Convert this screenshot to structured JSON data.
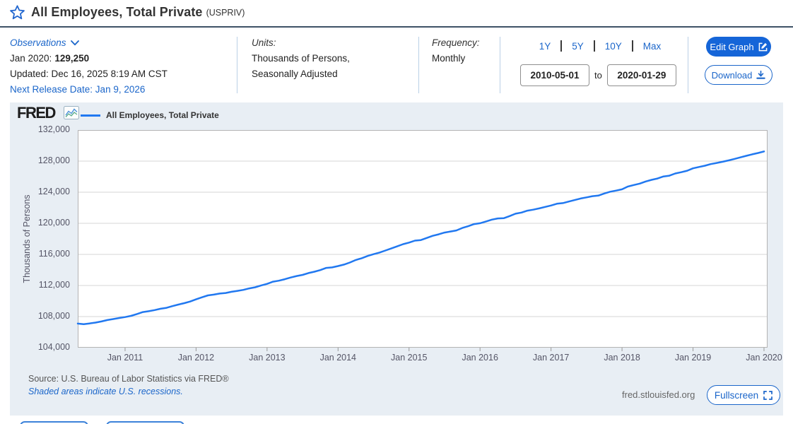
{
  "header": {
    "title": "All Employees, Total Private",
    "series_id": "(USPRIV)"
  },
  "observations": {
    "label": "Observations",
    "latest_label": "Jan 2020:",
    "latest_value": "129,250",
    "updated": "Updated: Dec 16, 2025 8:19 AM CST",
    "next_release": "Next Release Date: Jan 9, 2026"
  },
  "units": {
    "label": "Units:",
    "value_line1": "Thousands of Persons,",
    "value_line2": "Seasonally Adjusted"
  },
  "frequency": {
    "label": "Frequency:",
    "value": "Monthly"
  },
  "date_range": {
    "presets": [
      "1Y",
      "5Y",
      "10Y",
      "Max"
    ],
    "start": "2010-05-01",
    "separator": "to",
    "end": "2020-01-29"
  },
  "actions": {
    "edit_graph": "Edit Graph",
    "download": "Download",
    "fullscreen": "Fullscreen"
  },
  "branding": {
    "logo": "FRED",
    "site": "fred.stlouisfed.org"
  },
  "footnotes": {
    "source": "Source: U.S. Bureau of Labor Statistics via FRED®",
    "recessions": "Shaded areas indicate U.S. recessions."
  },
  "icons": {
    "star": "star-outline",
    "chevron": "chevron-down",
    "edit": "pencil-square",
    "download": "download-arrow",
    "fullscreen": "expand-corners",
    "logo_graph": "line-chart"
  },
  "colors": {
    "accent_blue": "#1b66ca",
    "button_blue": "#1565d8",
    "line_blue": "#2178f0",
    "panel_bg": "#e8eef4",
    "rule_navy": "#3e5266"
  },
  "chart_data": {
    "type": "line",
    "title": "All Employees, Total Private",
    "legend": [
      "All Employees, Total Private"
    ],
    "legend_position": "top-left",
    "xlabel": "",
    "ylabel": "Thousands of Persons",
    "grid": "horizontal",
    "ylim": [
      104000,
      132000
    ],
    "xlim": [
      2010.3333,
      2020.05
    ],
    "line_color": "#2178f0",
    "yticks": [
      {
        "v": 104000,
        "label": "104,000"
      },
      {
        "v": 108000,
        "label": "108,000"
      },
      {
        "v": 112000,
        "label": "112,000"
      },
      {
        "v": 116000,
        "label": "116,000"
      },
      {
        "v": 120000,
        "label": "120,000"
      },
      {
        "v": 124000,
        "label": "124,000"
      },
      {
        "v": 128000,
        "label": "128,000"
      },
      {
        "v": 132000,
        "label": "132,000"
      }
    ],
    "xticks": [
      {
        "x": 2011,
        "label": "Jan 2011"
      },
      {
        "x": 2012,
        "label": "Jan 2012"
      },
      {
        "x": 2013,
        "label": "Jan 2013"
      },
      {
        "x": 2014,
        "label": "Jan 2014"
      },
      {
        "x": 2015,
        "label": "Jan 2015"
      },
      {
        "x": 2016,
        "label": "Jan 2016"
      },
      {
        "x": 2017,
        "label": "Jan 2017"
      },
      {
        "x": 2018,
        "label": "Jan 2018"
      },
      {
        "x": 2019,
        "label": "Jan 2019"
      },
      {
        "x": 2020,
        "label": "Jan 2020"
      }
    ],
    "series": [
      {
        "name": "All Employees, Total Private",
        "points": [
          [
            "2010-05",
            107100
          ],
          [
            "2010-06",
            107030
          ],
          [
            "2010-07",
            107120
          ],
          [
            "2010-08",
            107230
          ],
          [
            "2010-09",
            107370
          ],
          [
            "2010-10",
            107550
          ],
          [
            "2010-11",
            107680
          ],
          [
            "2010-12",
            107820
          ],
          [
            "2011-01",
            107940
          ],
          [
            "2011-02",
            108090
          ],
          [
            "2011-03",
            108330
          ],
          [
            "2011-04",
            108580
          ],
          [
            "2011-05",
            108690
          ],
          [
            "2011-06",
            108840
          ],
          [
            "2011-07",
            109010
          ],
          [
            "2011-08",
            109130
          ],
          [
            "2011-09",
            109350
          ],
          [
            "2011-10",
            109550
          ],
          [
            "2011-11",
            109730
          ],
          [
            "2011-12",
            109940
          ],
          [
            "2012-01",
            110220
          ],
          [
            "2012-02",
            110480
          ],
          [
            "2012-03",
            110730
          ],
          [
            "2012-04",
            110830
          ],
          [
            "2012-05",
            110960
          ],
          [
            "2012-06",
            111040
          ],
          [
            "2012-07",
            111190
          ],
          [
            "2012-08",
            111310
          ],
          [
            "2012-09",
            111440
          ],
          [
            "2012-10",
            111630
          ],
          [
            "2012-11",
            111770
          ],
          [
            "2012-12",
            112010
          ],
          [
            "2013-01",
            112210
          ],
          [
            "2013-02",
            112490
          ],
          [
            "2013-03",
            112620
          ],
          [
            "2013-04",
            112810
          ],
          [
            "2013-05",
            113030
          ],
          [
            "2013-06",
            113220
          ],
          [
            "2013-07",
            113360
          ],
          [
            "2013-08",
            113600
          ],
          [
            "2013-09",
            113770
          ],
          [
            "2013-10",
            113980
          ],
          [
            "2013-11",
            114260
          ],
          [
            "2013-12",
            114330
          ],
          [
            "2014-01",
            114500
          ],
          [
            "2014-02",
            114690
          ],
          [
            "2014-03",
            114950
          ],
          [
            "2014-04",
            115280
          ],
          [
            "2014-05",
            115510
          ],
          [
            "2014-06",
            115800
          ],
          [
            "2014-07",
            116030
          ],
          [
            "2014-08",
            116240
          ],
          [
            "2014-09",
            116500
          ],
          [
            "2014-10",
            116760
          ],
          [
            "2014-11",
            117040
          ],
          [
            "2014-12",
            117320
          ],
          [
            "2015-01",
            117520
          ],
          [
            "2015-02",
            117770
          ],
          [
            "2015-03",
            117850
          ],
          [
            "2015-04",
            118120
          ],
          [
            "2015-05",
            118390
          ],
          [
            "2015-06",
            118580
          ],
          [
            "2015-07",
            118810
          ],
          [
            "2015-08",
            118950
          ],
          [
            "2015-09",
            119080
          ],
          [
            "2015-10",
            119400
          ],
          [
            "2015-11",
            119630
          ],
          [
            "2015-12",
            119900
          ],
          [
            "2016-01",
            120010
          ],
          [
            "2016-02",
            120240
          ],
          [
            "2016-03",
            120470
          ],
          [
            "2016-04",
            120630
          ],
          [
            "2016-05",
            120650
          ],
          [
            "2016-06",
            120930
          ],
          [
            "2016-07",
            121240
          ],
          [
            "2016-08",
            121380
          ],
          [
            "2016-09",
            121630
          ],
          [
            "2016-10",
            121750
          ],
          [
            "2016-11",
            121920
          ],
          [
            "2016-12",
            122110
          ],
          [
            "2017-01",
            122290
          ],
          [
            "2017-02",
            122520
          ],
          [
            "2017-03",
            122600
          ],
          [
            "2017-04",
            122800
          ],
          [
            "2017-05",
            122990
          ],
          [
            "2017-06",
            123190
          ],
          [
            "2017-07",
            123340
          ],
          [
            "2017-08",
            123490
          ],
          [
            "2017-09",
            123560
          ],
          [
            "2017-10",
            123840
          ],
          [
            "2017-11",
            124060
          ],
          [
            "2017-12",
            124210
          ],
          [
            "2018-01",
            124370
          ],
          [
            "2018-02",
            124740
          ],
          [
            "2018-03",
            124930
          ],
          [
            "2018-04",
            125110
          ],
          [
            "2018-05",
            125380
          ],
          [
            "2018-06",
            125590
          ],
          [
            "2018-07",
            125760
          ],
          [
            "2018-08",
            126030
          ],
          [
            "2018-09",
            126130
          ],
          [
            "2018-10",
            126410
          ],
          [
            "2018-11",
            126570
          ],
          [
            "2018-12",
            126760
          ],
          [
            "2019-01",
            127070
          ],
          [
            "2019-02",
            127250
          ],
          [
            "2019-03",
            127410
          ],
          [
            "2019-04",
            127620
          ],
          [
            "2019-05",
            127760
          ],
          [
            "2019-06",
            127920
          ],
          [
            "2019-07",
            128090
          ],
          [
            "2019-08",
            128280
          ],
          [
            "2019-09",
            128480
          ],
          [
            "2019-10",
            128680
          ],
          [
            "2019-11",
            128870
          ],
          [
            "2019-12",
            129050
          ],
          [
            "2020-01",
            129250
          ]
        ]
      }
    ]
  }
}
